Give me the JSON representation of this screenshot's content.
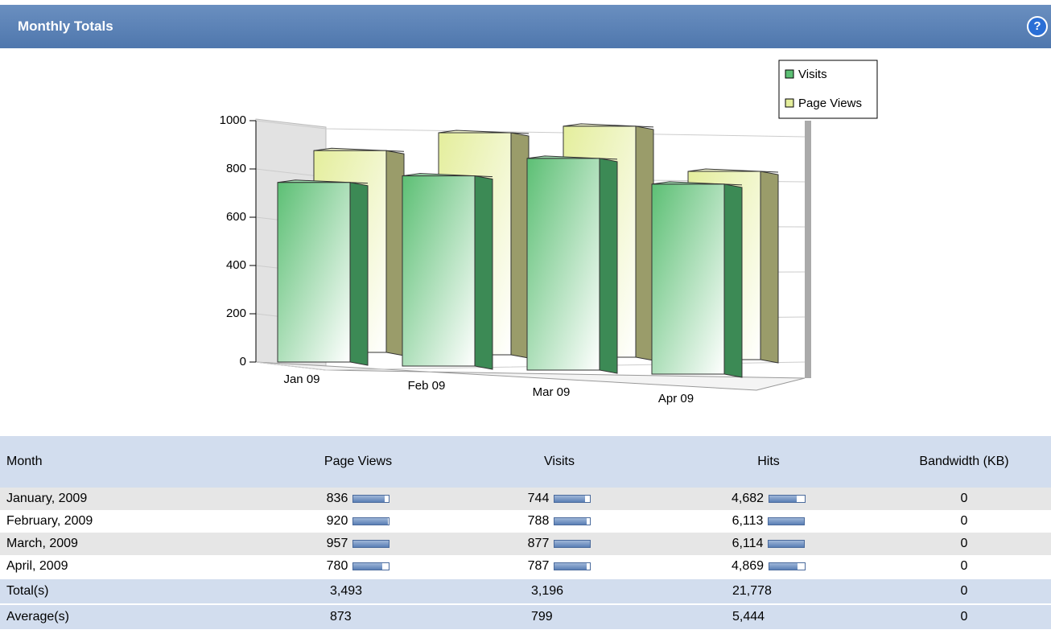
{
  "header": {
    "title": "Monthly Totals",
    "help": "?"
  },
  "chart_data": {
    "type": "bar",
    "categories": [
      "Jan 09",
      "Feb 09",
      "Mar 09",
      "Apr 09"
    ],
    "series": [
      {
        "name": "Visits",
        "color": "#5cbf74",
        "values": [
          744,
          788,
          877,
          787
        ]
      },
      {
        "name": "Page Views",
        "color": "#e4ee9c",
        "values": [
          836,
          920,
          957,
          780
        ]
      }
    ],
    "ylim": [
      0,
      1000
    ],
    "yticks": [
      0,
      200,
      400,
      600,
      800,
      1000
    ],
    "grid": true,
    "legend": "top-right"
  },
  "table": {
    "columns": [
      "Month",
      "Page Views",
      "Visits",
      "Hits",
      "Bandwidth (KB)"
    ],
    "rows": [
      [
        "January, 2009",
        "836",
        "744",
        "4,682",
        "0"
      ],
      [
        "February, 2009",
        "920",
        "788",
        "6,113",
        "0"
      ],
      [
        "March, 2009",
        "957",
        "877",
        "6,114",
        "0"
      ],
      [
        "April, 2009",
        "780",
        "787",
        "4,869",
        "0"
      ]
    ],
    "footer": [
      [
        "Total(s)",
        "3,493",
        "3,196",
        "21,778",
        "0"
      ],
      [
        "Average(s)",
        "873",
        "799",
        "5,444",
        "0"
      ]
    ]
  }
}
